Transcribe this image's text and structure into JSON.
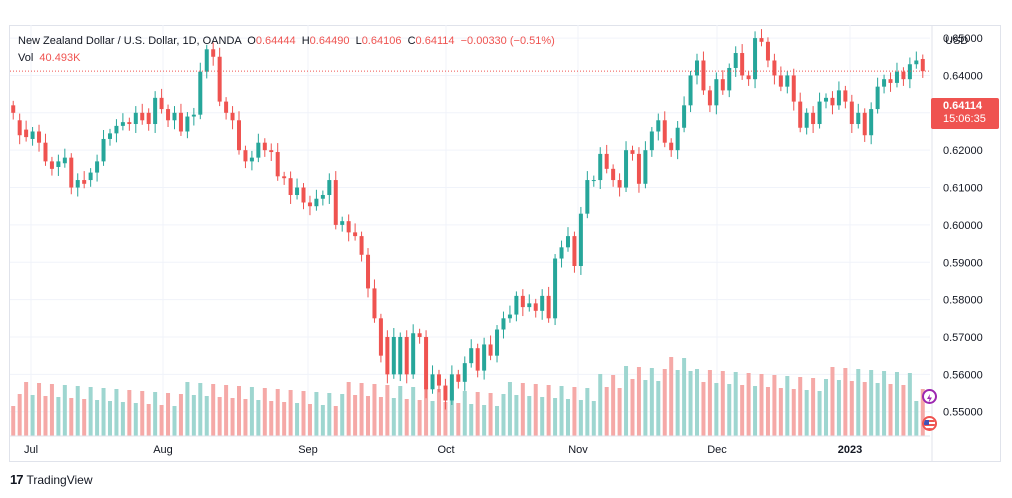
{
  "legend": {
    "symbol": "New Zealand Dollar / U.S. Dollar, 1D, OANDA",
    "o_label": "O",
    "o_value": "0.64444",
    "h_label": "H",
    "h_value": "0.64490",
    "l_label": "L",
    "l_value": "0.64106",
    "c_label": "C",
    "c_value": "0.64114",
    "change": "−0.00330 (−0.51%)",
    "vol_label": "Vol",
    "vol_value": "40.493K"
  },
  "currency": "USD",
  "price_tag": {
    "price": "0.64114",
    "countdown": "15:06:35"
  },
  "footer": {
    "brand": "TradingView"
  },
  "colors": {
    "up": "#26a69a",
    "down": "#ef5350",
    "up_vol": "#9ed6d0",
    "down_vol": "#f5a9a7",
    "grid": "#f0f3fa"
  },
  "icons": [
    "lightning-icon",
    "flag-icon"
  ],
  "chart_data": {
    "type": "candlestick",
    "y_axis_ticks": [
      "0.65000",
      "0.64000",
      "0.63000",
      "0.62000",
      "0.61000",
      "0.60000",
      "0.59000",
      "0.58000",
      "0.57000",
      "0.56000",
      "0.55000"
    ],
    "ylim": [
      0.5435,
      0.6535
    ],
    "x_axis_ticks": [
      "Jul",
      "Aug",
      "Sep",
      "Oct",
      "Nov",
      "Dec",
      "2023"
    ],
    "last_price": 0.64114,
    "series": [
      {
        "name": "Price",
        "close": [
          0.63,
          0.624,
          0.6235,
          0.625,
          0.622,
          0.617,
          0.615,
          0.617,
          0.618,
          0.61,
          0.612,
          0.611,
          0.614,
          0.617,
          0.623,
          0.6245,
          0.6265,
          0.6275,
          0.627,
          0.63,
          0.628,
          0.627,
          0.634,
          0.631,
          0.628,
          0.63,
          0.625,
          0.629,
          0.6295,
          0.641,
          0.647,
          0.645,
          0.633,
          0.63,
          0.628,
          0.62,
          0.617,
          0.618,
          0.622,
          0.62,
          0.6195,
          0.613,
          0.6125,
          0.608,
          0.61,
          0.606,
          0.605,
          0.607,
          0.608,
          0.612,
          0.6,
          0.601,
          0.598,
          0.597,
          0.592,
          0.583,
          0.575,
          0.565,
          0.56,
          0.57,
          0.57,
          0.56,
          0.571,
          0.57,
          0.556,
          0.56,
          0.557,
          0.553,
          0.56,
          0.558,
          0.563,
          0.567,
          0.561,
          0.568,
          0.565,
          0.572,
          0.575,
          0.576,
          0.581,
          0.578,
          0.579,
          0.577,
          0.581,
          0.575,
          0.591,
          0.594,
          0.597,
          0.589,
          0.603,
          0.612,
          0.612,
          0.619,
          0.615,
          0.612,
          0.61,
          0.62,
          0.619,
          0.611,
          0.62,
          0.625,
          0.628,
          0.622,
          0.62,
          0.626,
          0.632,
          0.64,
          0.644,
          0.636,
          0.632,
          0.639,
          0.636,
          0.642,
          0.646,
          0.64,
          0.639,
          0.65,
          0.649,
          0.644,
          0.64,
          0.637,
          0.64,
          0.633,
          0.626,
          0.63,
          0.627,
          0.633,
          0.634,
          0.632,
          0.636,
          0.633,
          0.627,
          0.63,
          0.624,
          0.631,
          0.637,
          0.639,
          0.638,
          0.641,
          0.639,
          0.643,
          0.644,
          0.64114
        ],
        "open": [
          0.632,
          0.628,
          0.6255,
          0.623,
          0.625,
          0.622,
          0.617,
          0.6155,
          0.6165,
          0.618,
          0.61,
          0.612,
          0.612,
          0.614,
          0.617,
          0.623,
          0.6245,
          0.6265,
          0.6275,
          0.627,
          0.63,
          0.63,
          0.627,
          0.634,
          0.631,
          0.628,
          0.63,
          0.625,
          0.629,
          0.6295,
          0.641,
          0.647,
          0.645,
          0.633,
          0.63,
          0.628,
          0.62,
          0.617,
          0.618,
          0.622,
          0.62,
          0.6195,
          0.613,
          0.6125,
          0.608,
          0.61,
          0.606,
          0.605,
          0.607,
          0.608,
          0.612,
          0.6,
          0.601,
          0.598,
          0.597,
          0.592,
          0.583,
          0.575,
          0.57,
          0.56,
          0.56,
          0.57,
          0.56,
          0.571,
          0.57,
          0.556,
          0.56,
          0.557,
          0.553,
          0.56,
          0.558,
          0.563,
          0.567,
          0.561,
          0.568,
          0.565,
          0.572,
          0.575,
          0.576,
          0.581,
          0.578,
          0.579,
          0.577,
          0.581,
          0.575,
          0.591,
          0.594,
          0.597,
          0.589,
          0.603,
          0.612,
          0.612,
          0.619,
          0.615,
          0.612,
          0.61,
          0.62,
          0.619,
          0.611,
          0.62,
          0.625,
          0.628,
          0.622,
          0.62,
          0.626,
          0.632,
          0.64,
          0.644,
          0.636,
          0.632,
          0.639,
          0.636,
          0.642,
          0.646,
          0.64,
          0.639,
          0.65,
          0.649,
          0.644,
          0.64,
          0.637,
          0.64,
          0.633,
          0.626,
          0.63,
          0.627,
          0.633,
          0.634,
          0.632,
          0.636,
          0.633,
          0.627,
          0.63,
          0.624,
          0.631,
          0.637,
          0.639,
          0.638,
          0.641,
          0.639,
          0.643,
          0.6444
        ]
      }
    ],
    "volume": [
      {
        "name": "Vol"
      }
    ]
  }
}
